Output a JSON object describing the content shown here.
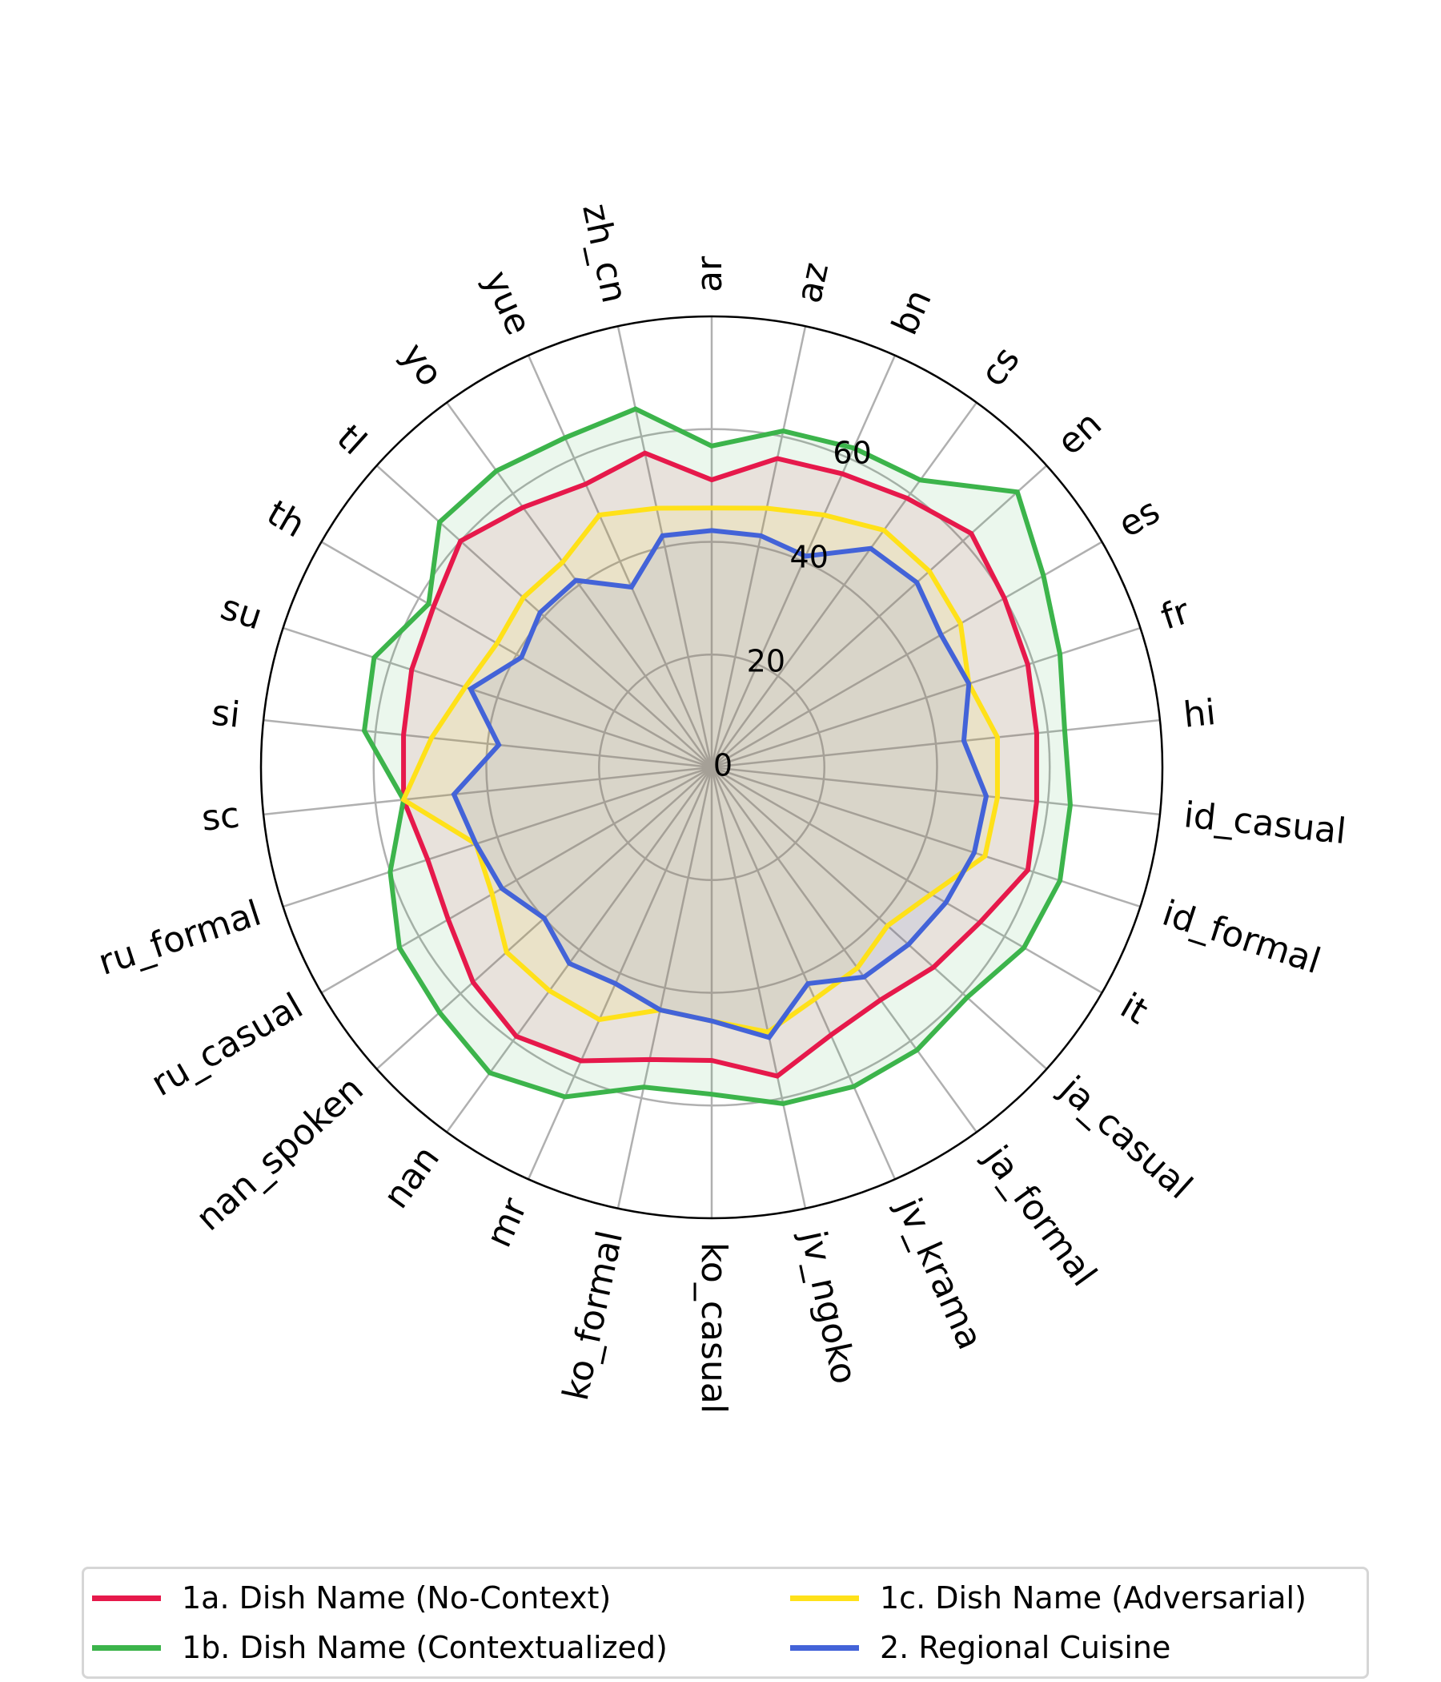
{
  "chart_data": {
    "type": "radar",
    "title": "",
    "categories": [
      "ar",
      "az",
      "bn",
      "cs",
      "en",
      "es",
      "fr",
      "hi",
      "id_casual",
      "id_formal",
      "it",
      "ja_casual",
      "ja_formal",
      "jv_krama",
      "jv_ngoko",
      "ko_casual",
      "ko_formal",
      "mr",
      "nan",
      "nan_spoken",
      "ru_casual",
      "ru_formal",
      "sc",
      "si",
      "su",
      "th",
      "tl",
      "yo",
      "yue",
      "zh_cn"
    ],
    "radial_ticks": [
      0,
      20,
      40,
      60
    ],
    "rlim": [
      0,
      80
    ],
    "grid": true,
    "legend_position": "bottom",
    "series": [
      {
        "name": "1a. Dish Name (No-Context)",
        "color": "#e6194b",
        "values": [
          51,
          56,
          57,
          59,
          62,
          60,
          59,
          58,
          58,
          59,
          55,
          53,
          51,
          52,
          56,
          52,
          53,
          57,
          59,
          57,
          54,
          53,
          55,
          55,
          56,
          57,
          60,
          57,
          55,
          57
        ]
      },
      {
        "name": "1b. Dish Name (Contextualized)",
        "color": "#3cb44b",
        "values": [
          57,
          61,
          62,
          63,
          73,
          68,
          65,
          63,
          64,
          65,
          64,
          61,
          62,
          62,
          61,
          58,
          58,
          64,
          67,
          65,
          64,
          60,
          55,
          62,
          63,
          58,
          65,
          65,
          64,
          65
        ]
      },
      {
        "name": "1c. Dish Name (Adversarial)",
        "color": "#ffe119",
        "values": [
          46,
          47,
          49,
          52,
          52,
          51,
          48,
          51,
          51,
          51,
          45,
          42,
          44,
          45,
          48,
          45,
          44,
          49,
          49,
          49,
          45,
          44,
          55,
          50,
          46,
          44,
          45,
          45,
          49,
          47
        ]
      },
      {
        "name": "2. Regional Cuisine",
        "color": "#4363d8",
        "values": [
          42,
          42,
          41,
          48,
          49,
          47,
          48,
          45,
          49,
          49,
          48,
          47,
          46,
          42,
          49,
          45,
          44,
          42,
          43,
          40,
          43,
          44,
          46,
          38,
          45,
          39,
          41,
          41,
          35,
          42
        ]
      }
    ]
  }
}
